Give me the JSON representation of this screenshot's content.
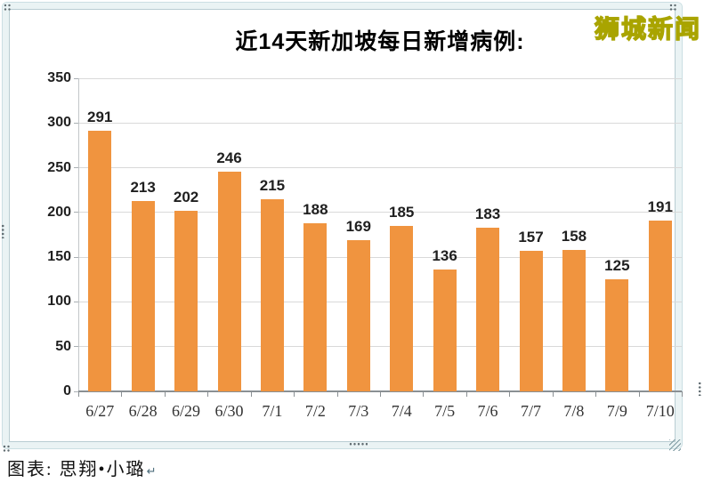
{
  "title": {
    "text": "近14天新加坡每日新增病例:"
  },
  "watermark": {
    "text": "狮城新闻",
    "fill_color": "#FFFF00",
    "outline_color": "#A9A400"
  },
  "caption": {
    "text": "图表: 思翔•小璐",
    "return_mark": "↵"
  },
  "frame": {
    "band_color": "#EAF3F4",
    "edge_color": "#B9CDD2"
  },
  "chart_data": {
    "type": "bar",
    "title": "近14天新加坡每日新增病例:",
    "categories": [
      "6/27",
      "6/28",
      "6/29",
      "6/30",
      "7/1",
      "7/2",
      "7/3",
      "7/4",
      "7/5",
      "7/6",
      "7/7",
      "7/8",
      "7/9",
      "7/10"
    ],
    "values": [
      291,
      213,
      202,
      246,
      215,
      188,
      169,
      185,
      136,
      183,
      157,
      158,
      125,
      191
    ],
    "xlabel": "",
    "ylabel": "",
    "ylim": [
      0,
      350
    ],
    "ytick_interval": 50,
    "bar_color": "#F0943F",
    "gridlines": "horizontal",
    "legend": "none",
    "value_labels": true
  }
}
